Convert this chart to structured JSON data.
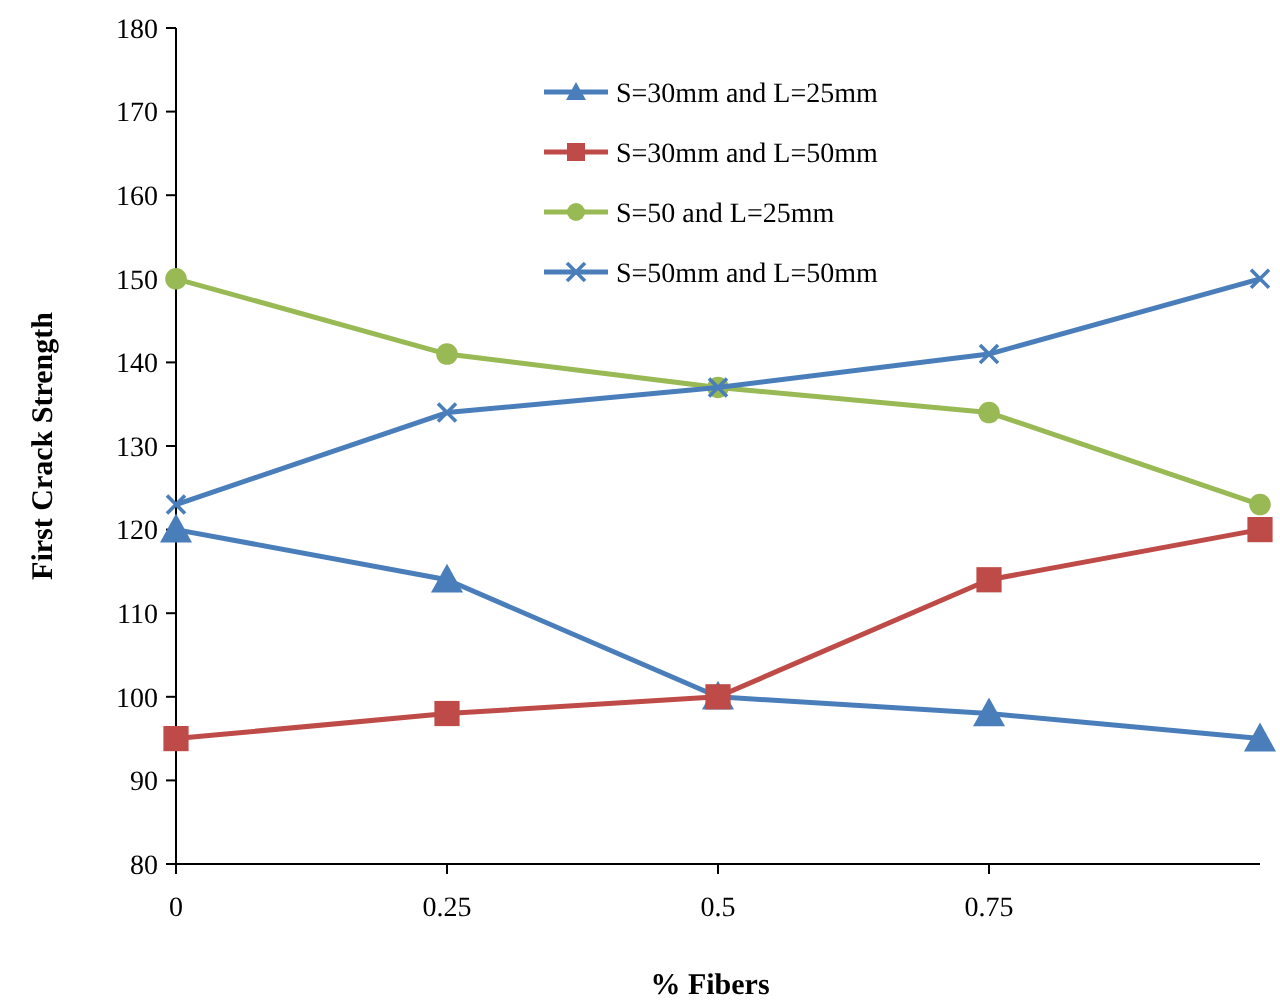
{
  "chart_data": {
    "type": "line",
    "xlabel": "% Fibers",
    "ylabel": "First Crack Strength",
    "x": [
      0,
      0.25,
      0.5,
      0.75,
      1
    ],
    "xlim": [
      0,
      1
    ],
    "xticks": [
      0,
      0.25,
      0.5,
      0.75
    ],
    "ylim": [
      80,
      180
    ],
    "yticks": [
      80,
      90,
      100,
      110,
      120,
      130,
      140,
      150,
      160,
      170,
      180
    ],
    "grid": false,
    "legend": "top",
    "series": [
      {
        "name": "S=30mm and L=25mm",
        "color": "#4a7ebb",
        "marker": "triangle",
        "values": [
          120,
          114,
          100,
          98,
          95
        ]
      },
      {
        "name": "S=30mm and L=50mm",
        "color": "#be4b48",
        "marker": "square",
        "values": [
          95,
          98,
          100,
          114,
          120
        ]
      },
      {
        "name": "S=50 and L=25mm",
        "color": "#98b954",
        "marker": "circle",
        "values": [
          150,
          141,
          137,
          134,
          123
        ]
      },
      {
        "name": "S=50mm and L=50mm",
        "color": "#4a7ebb",
        "marker": "cross",
        "values": [
          123,
          134,
          137,
          141,
          150
        ]
      }
    ]
  }
}
